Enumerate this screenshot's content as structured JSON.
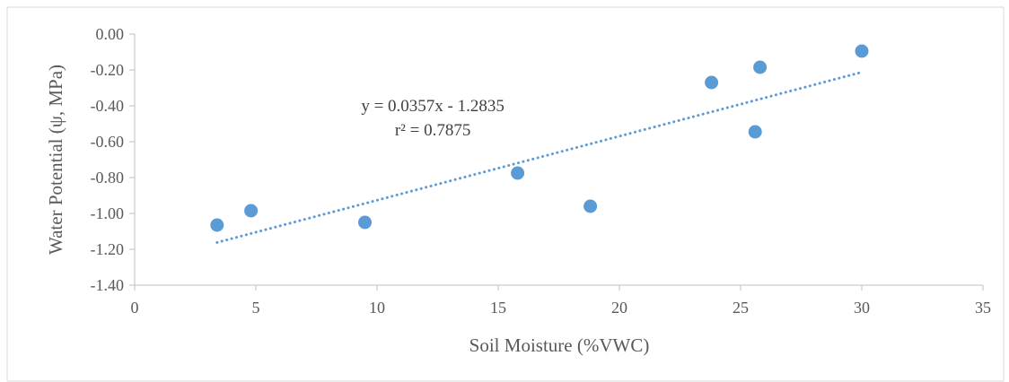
{
  "chart_data": {
    "type": "scatter",
    "title": "",
    "xlabel": "Soil Moisture (%VWC)",
    "ylabel": "Water Potential (ψ, MPa)",
    "xlim": [
      0,
      35
    ],
    "ylim": [
      -1.4,
      0.0
    ],
    "x_ticks": [
      0,
      5,
      10,
      15,
      20,
      25,
      30,
      35
    ],
    "x_tick_labels": [
      "0",
      "5",
      "10",
      "15",
      "20",
      "25",
      "30",
      "35"
    ],
    "y_ticks": [
      0.0,
      -0.2,
      -0.4,
      -0.6,
      -0.8,
      -1.0,
      -1.2,
      -1.4
    ],
    "y_tick_labels": [
      "0.00",
      "-0.20",
      "-0.40",
      "-0.60",
      "-0.80",
      "-1.00",
      "-1.20",
      "-1.40"
    ],
    "grid": false,
    "legend": "none",
    "colors": {
      "points": "#5b9bd5",
      "trendline": "#5b9bd5",
      "axis": "#bfbfbf"
    },
    "series": [
      {
        "x": [
          3.4,
          4.8,
          9.5,
          15.8,
          18.8,
          23.8,
          25.6,
          25.8,
          30.0
        ],
        "y": [
          -1.065,
          -0.985,
          -1.05,
          -0.775,
          -0.96,
          -0.27,
          -0.545,
          -0.185,
          -0.095
        ]
      }
    ],
    "trendline": {
      "type": "linear",
      "slope": 0.0357,
      "intercept": -1.2835,
      "x_range": [
        3.4,
        30.0
      ],
      "style": "dotted"
    },
    "annotations": {
      "equation": "y = 0.0357x - 1.2835",
      "r_squared": "r² = 0.7875",
      "anchor": {
        "x": 12.3,
        "y": -0.43
      }
    }
  }
}
